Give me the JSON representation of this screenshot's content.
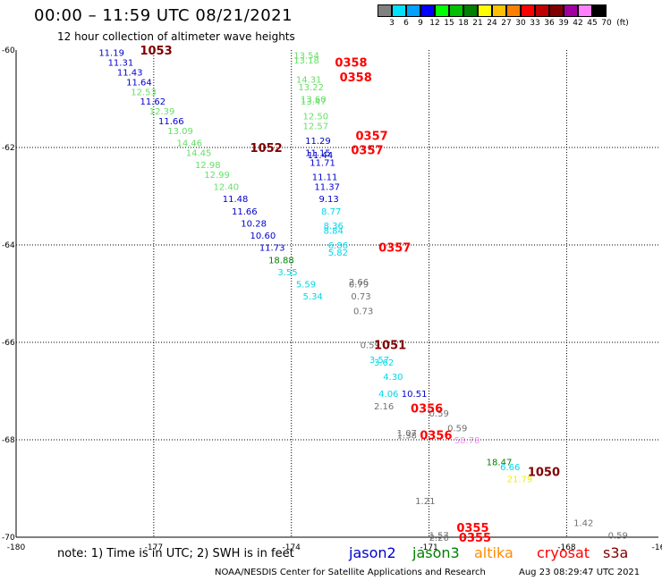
{
  "header": {
    "title": "00:00 – 11:59 UTC 08/21/2021",
    "subtitle": "12 hour collection of altimeter wave heights"
  },
  "legend": {
    "swatches": [
      "#808080",
      "#00e0ff",
      "#00a0ff",
      "#0000ff",
      "#00ff00",
      "#00c000",
      "#008000",
      "#ffff00",
      "#ffc000",
      "#ff8000",
      "#ff0000",
      "#c00000",
      "#800000",
      "#a000a0",
      "#ff80ff",
      "#000000"
    ],
    "labels": [
      "3",
      "6",
      "9",
      "12",
      "15",
      "18",
      "21",
      "24",
      "27",
      "30",
      "33",
      "36",
      "39",
      "42",
      "45",
      "70",
      "(ft)"
    ]
  },
  "footer": {
    "note": "note:  1) Time is in UTC;  2) SWH is in feet",
    "satellites": [
      {
        "name": "jason2",
        "color": "#0000cc"
      },
      {
        "name": "jason3",
        "color": "#007f00"
      },
      {
        "name": "altika",
        "color": "#ff8c00"
      },
      {
        "name": "cryosat",
        "color": "#ff0000"
      },
      {
        "name": "s3a",
        "color": "#800000"
      }
    ],
    "credit": "NOAA/NESDIS Center for Satellite Applications and Research",
    "stamp": "Aug 23 08:29:47 UTC 2021"
  },
  "chart_data": {
    "type": "scatter",
    "xlim": [
      -180,
      -166
    ],
    "ylim": [
      -70,
      -60
    ],
    "x_ticks": [
      "-180",
      "-177",
      "-174",
      "-171",
      "-168",
      "-16"
    ],
    "y_ticks": [
      "-60",
      "-62",
      "-64",
      "-66",
      "-68",
      "-70"
    ],
    "grid": true,
    "colors": {
      "gray": "#707070",
      "cyan": "#00d8e8",
      "blue": "#0000cc",
      "lightgreen": "#66e066",
      "darkgreen": "#007f00",
      "yellow": "#f0f000",
      "pink": "#f090f0",
      "red": "#ff0000",
      "maroon": "#800000"
    },
    "points": [
      {
        "x": -178.2,
        "y": -60.05,
        "label": "11.19",
        "c": "blue"
      },
      {
        "x": -178.0,
        "y": -60.25,
        "label": "11.31",
        "c": "blue"
      },
      {
        "x": -177.8,
        "y": -60.45,
        "label": "11.43",
        "c": "blue"
      },
      {
        "x": -177.6,
        "y": -60.65,
        "label": "11.64",
        "c": "blue"
      },
      {
        "x": -177.5,
        "y": -60.85,
        "label": "12.53",
        "c": "lightgreen"
      },
      {
        "x": -177.3,
        "y": -61.05,
        "label": "11.62",
        "c": "blue"
      },
      {
        "x": -177.1,
        "y": -61.25,
        "label": "12.39",
        "c": "lightgreen"
      },
      {
        "x": -176.9,
        "y": -61.45,
        "label": "11.66",
        "c": "blue"
      },
      {
        "x": -176.7,
        "y": -61.65,
        "label": "13.09",
        "c": "lightgreen"
      },
      {
        "x": -176.5,
        "y": -61.9,
        "label": "14.46",
        "c": "lightgreen"
      },
      {
        "x": -176.3,
        "y": -62.1,
        "label": "14.45",
        "c": "lightgreen"
      },
      {
        "x": -176.1,
        "y": -62.35,
        "label": "12.98",
        "c": "lightgreen"
      },
      {
        "x": -175.9,
        "y": -62.55,
        "label": "12.99",
        "c": "lightgreen"
      },
      {
        "x": -175.7,
        "y": -62.8,
        "label": "12.40",
        "c": "lightgreen"
      },
      {
        "x": -175.5,
        "y": -63.05,
        "label": "11.48",
        "c": "blue"
      },
      {
        "x": -175.3,
        "y": -63.3,
        "label": "11.66",
        "c": "blue"
      },
      {
        "x": -175.1,
        "y": -63.55,
        "label": "10.28",
        "c": "blue"
      },
      {
        "x": -174.9,
        "y": -63.8,
        "label": "10.60",
        "c": "blue"
      },
      {
        "x": -174.7,
        "y": -64.05,
        "label": "11.73",
        "c": "blue"
      },
      {
        "x": -174.5,
        "y": -64.3,
        "label": "18.88",
        "c": "darkgreen"
      },
      {
        "x": -174.3,
        "y": -64.55,
        "label": "3.55",
        "c": "cyan"
      },
      {
        "x": -173.9,
        "y": -64.8,
        "label": "5.59",
        "c": "cyan"
      },
      {
        "x": -173.75,
        "y": -65.05,
        "label": "5.34",
        "c": "cyan"
      },
      {
        "x": -173.95,
        "y": -60.1,
        "label": "13.54",
        "c": "lightgreen"
      },
      {
        "x": -173.95,
        "y": -60.2,
        "label": "13.18",
        "c": "lightgreen"
      },
      {
        "x": -173.9,
        "y": -60.6,
        "label": "14.31",
        "c": "lightgreen"
      },
      {
        "x": -173.85,
        "y": -60.75,
        "label": "13.22",
        "c": "lightgreen"
      },
      {
        "x": -173.8,
        "y": -61.0,
        "label": "13.60",
        "c": "lightgreen"
      },
      {
        "x": -173.8,
        "y": -61.05,
        "label": "13.47",
        "c": "lightgreen"
      },
      {
        "x": -173.75,
        "y": -61.35,
        "label": "12.50",
        "c": "lightgreen"
      },
      {
        "x": -173.75,
        "y": -61.55,
        "label": "12.57",
        "c": "lightgreen"
      },
      {
        "x": -173.7,
        "y": -61.85,
        "label": "11.29",
        "c": "blue"
      },
      {
        "x": -173.7,
        "y": -62.1,
        "label": "11.15",
        "c": "blue"
      },
      {
        "x": -173.65,
        "y": -62.15,
        "label": "11.44",
        "c": "blue"
      },
      {
        "x": -173.6,
        "y": -62.3,
        "label": "11.71",
        "c": "blue"
      },
      {
        "x": -173.55,
        "y": -62.6,
        "label": "11.11",
        "c": "blue"
      },
      {
        "x": -173.5,
        "y": -62.8,
        "label": "11.37",
        "c": "blue"
      },
      {
        "x": -173.4,
        "y": -63.05,
        "label": "9.13",
        "c": "blue"
      },
      {
        "x": -173.35,
        "y": -63.3,
        "label": "8.77",
        "c": "cyan"
      },
      {
        "x": -173.3,
        "y": -63.6,
        "label": "8.36",
        "c": "cyan"
      },
      {
        "x": -173.3,
        "y": -63.7,
        "label": "8.84",
        "c": "cyan"
      },
      {
        "x": -173.2,
        "y": -64.0,
        "label": "6.86",
        "c": "cyan"
      },
      {
        "x": -173.2,
        "y": -64.15,
        "label": "5.82",
        "c": "cyan"
      },
      {
        "x": -172.75,
        "y": -64.75,
        "label": "2.66",
        "c": "gray"
      },
      {
        "x": -172.75,
        "y": -64.8,
        "label": "0.79",
        "c": "gray"
      },
      {
        "x": -172.7,
        "y": -65.05,
        "label": "0.73",
        "c": "gray"
      },
      {
        "x": -172.65,
        "y": -65.35,
        "label": "0.73",
        "c": "gray"
      },
      {
        "x": -172.5,
        "y": -66.05,
        "label": "0.59",
        "c": "gray"
      },
      {
        "x": -172.3,
        "y": -66.35,
        "label": "3.57",
        "c": "cyan"
      },
      {
        "x": -172.2,
        "y": -66.4,
        "label": "3.62",
        "c": "cyan"
      },
      {
        "x": -172.0,
        "y": -66.7,
        "label": "4.30",
        "c": "cyan"
      },
      {
        "x": -172.1,
        "y": -67.05,
        "label": "4.06",
        "c": "cyan"
      },
      {
        "x": -171.6,
        "y": -67.05,
        "label": "10.51",
        "c": "blue"
      },
      {
        "x": -172.2,
        "y": -67.3,
        "label": "2.16",
        "c": "gray"
      },
      {
        "x": -171.0,
        "y": -67.45,
        "label": "0.59",
        "c": "gray"
      },
      {
        "x": -170.6,
        "y": -67.75,
        "label": "0.59",
        "c": "gray"
      },
      {
        "x": -171.7,
        "y": -67.85,
        "label": "1.07",
        "c": "gray"
      },
      {
        "x": -171.7,
        "y": -67.9,
        "label": "1.38",
        "c": "gray"
      },
      {
        "x": -170.45,
        "y": -68.0,
        "label": "58.78",
        "c": "pink"
      },
      {
        "x": -169.75,
        "y": -68.45,
        "label": "18.47",
        "c": "darkgreen"
      },
      {
        "x": -169.45,
        "y": -68.55,
        "label": "6.66",
        "c": "cyan"
      },
      {
        "x": -169.3,
        "y": -68.8,
        "label": "21.79",
        "c": "yellow"
      },
      {
        "x": -171.3,
        "y": -69.25,
        "label": "1.21",
        "c": "gray"
      },
      {
        "x": -167.85,
        "y": -69.7,
        "label": "1.42",
        "c": "gray"
      },
      {
        "x": -171.0,
        "y": -69.95,
        "label": "1.57",
        "c": "gray"
      },
      {
        "x": -171.0,
        "y": -70.0,
        "label": "2.20",
        "c": "gray"
      },
      {
        "x": -167.1,
        "y": -69.95,
        "label": "0.59",
        "c": "gray"
      }
    ],
    "time_labels": [
      {
        "x": -177.3,
        "y": -60.0,
        "label": "1053",
        "c": "maroon"
      },
      {
        "x": -174.9,
        "y": -62.0,
        "label": "1052",
        "c": "maroon"
      },
      {
        "x": -172.2,
        "y": -66.05,
        "label": "1051",
        "c": "maroon"
      },
      {
        "x": -168.85,
        "y": -68.65,
        "label": "1050",
        "c": "maroon"
      },
      {
        "x": -173.05,
        "y": -60.25,
        "label": "0358",
        "c": "red"
      },
      {
        "x": -172.95,
        "y": -60.55,
        "label": "0358",
        "c": "red"
      },
      {
        "x": -172.6,
        "y": -61.75,
        "label": "0357",
        "c": "red"
      },
      {
        "x": -172.7,
        "y": -62.05,
        "label": "0357",
        "c": "red"
      },
      {
        "x": -172.1,
        "y": -64.05,
        "label": "0357",
        "c": "red"
      },
      {
        "x": -171.4,
        "y": -67.35,
        "label": "0356",
        "c": "red"
      },
      {
        "x": -171.2,
        "y": -67.9,
        "label": "0356",
        "c": "red"
      },
      {
        "x": -170.4,
        "y": -69.8,
        "label": "0355",
        "c": "red"
      },
      {
        "x": -170.35,
        "y": -70.0,
        "label": "0355",
        "c": "red"
      }
    ]
  }
}
